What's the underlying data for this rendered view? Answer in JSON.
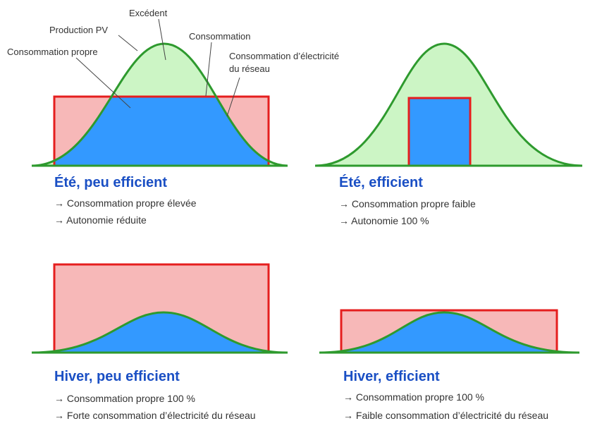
{
  "annotations": {
    "excedent": "Excédent",
    "production_pv": "Production PV",
    "consommation": "Consommation",
    "consommation_propre": "Consommation propre",
    "reseau": [
      "Consommation d’électricité",
      "du réseau"
    ]
  },
  "panels": [
    {
      "title": "Été, peu efficient",
      "bullets": [
        "→ Consommation propre élevée",
        "→ Autonomie réduite"
      ]
    },
    {
      "title": "Été, efficient",
      "bullets": [
        "→ Consommation propre faible",
        "→ Autonomie 100 %"
      ]
    },
    {
      "title": "Hiver, peu efficient",
      "bullets": [
        "→ Consommation propre 100 %",
        "→ Forte consommation d’électricité du réseau"
      ]
    },
    {
      "title": "Hiver, efficient",
      "bullets": [
        "→ Consommation propre 100 %",
        "→ Faible consommation d’électricité du réseau"
      ]
    }
  ]
}
